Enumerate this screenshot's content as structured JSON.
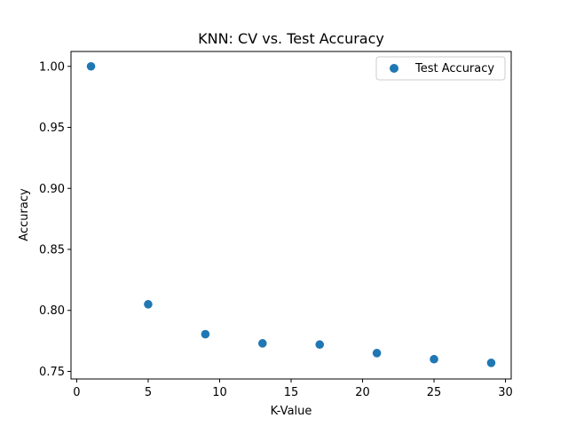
{
  "chart_data": {
    "type": "scatter",
    "title": "KNN: CV vs. Test Accuracy",
    "xlabel": "K-Value",
    "ylabel": "Accuracy",
    "xlim": [
      -0.4,
      30.4
    ],
    "ylim": [
      0.7438,
      1.0122
    ],
    "xticks": [
      0,
      5,
      10,
      15,
      20,
      25,
      30
    ],
    "yticks": [
      0.75,
      0.8,
      0.85,
      0.9,
      0.95,
      1.0
    ],
    "ytick_labels": [
      "0.75",
      "0.80",
      "0.85",
      "0.90",
      "0.95",
      "1.00"
    ],
    "grid": false,
    "legend_position": "top-right",
    "series": [
      {
        "name": "Test Accuracy",
        "color": "#1f77b4",
        "x": [
          1,
          5,
          9,
          13,
          17,
          21,
          25,
          29
        ],
        "y": [
          1.0,
          0.805,
          0.7805,
          0.773,
          0.772,
          0.765,
          0.76,
          0.757
        ]
      }
    ]
  }
}
